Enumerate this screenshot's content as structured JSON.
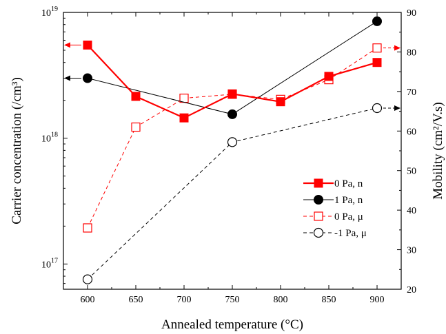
{
  "chart_data": {
    "type": "line",
    "xlabel": "Annealed temperature (°C)",
    "ylabel_left": "Carrier concentration (/cm³)",
    "ylabel_right": "Mobility (cm²/V.s)",
    "x_ticks": [
      600,
      650,
      700,
      750,
      800,
      850,
      900
    ],
    "xlim": [
      575,
      925
    ],
    "left_axis": {
      "scale": "log",
      "ylim": [
        6.3e+16,
        1e+19
      ],
      "ticks": [
        1e+17,
        1e+18,
        1e+19
      ]
    },
    "right_axis": {
      "scale": "linear",
      "ylim": [
        20,
        90
      ],
      "ticks": [
        20,
        30,
        40,
        50,
        60,
        70,
        80,
        90
      ]
    },
    "grid": false,
    "legend_position": "bottom-right",
    "series": [
      {
        "name": "0 Pa, n",
        "axis": "left",
        "color": "#ff0000",
        "marker": "filled-square",
        "line": "solid",
        "width": 2.2,
        "x": [
          600,
          650,
          700,
          750,
          800,
          850,
          900
        ],
        "y": [
          5.5e+18,
          2.15e+18,
          1.45e+18,
          2.25e+18,
          1.95e+18,
          3.1e+18,
          4e+18
        ]
      },
      {
        "name": "1 Pa, n",
        "axis": "left",
        "color": "#000000",
        "marker": "filled-circle",
        "line": "solid",
        "width": 1,
        "x": [
          600,
          750,
          900
        ],
        "y": [
          3e+18,
          1.55e+18,
          8.5e+18
        ]
      },
      {
        "name": "0 Pa, μ",
        "axis": "right",
        "color": "#ff0000",
        "marker": "open-square",
        "line": "dashed",
        "width": 1,
        "x": [
          600,
          650,
          700,
          750,
          800,
          850,
          900
        ],
        "y": [
          35.5,
          61,
          68.3,
          69.3,
          68,
          73,
          81
        ]
      },
      {
        "name": "-1 Pa, μ",
        "axis": "right",
        "color": "#000000",
        "marker": "open-circle",
        "line": "dashed",
        "width": 1,
        "x": [
          600,
          750,
          900
        ],
        "y": [
          22.5,
          57.2,
          65.8
        ]
      }
    ],
    "axis_arrows": [
      {
        "series": "0 Pa, n",
        "x": 600,
        "points_to": "left"
      },
      {
        "series": "1 Pa, n",
        "x": 600,
        "points_to": "left"
      },
      {
        "series": "0 Pa, μ",
        "x": 900,
        "points_to": "right"
      },
      {
        "series": "-1 Pa, μ",
        "x": 900,
        "points_to": "right"
      }
    ]
  }
}
